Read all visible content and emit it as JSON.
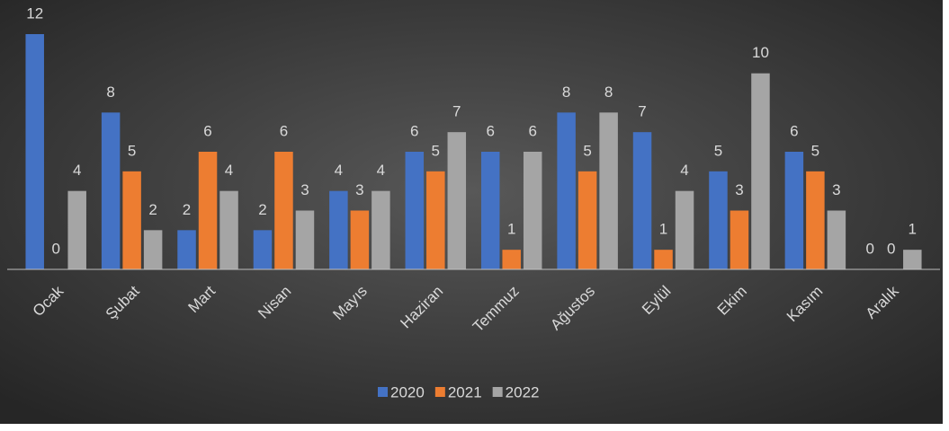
{
  "chart_data": {
    "type": "bar",
    "categories": [
      "Ocak",
      "Şubat",
      "Mart",
      "Nisan",
      "Mayıs",
      "Haziran",
      "Temmuz",
      "Ağustos",
      "Eylül",
      "Ekim",
      "Kasım",
      "Aralık"
    ],
    "series": [
      {
        "name": "2020",
        "color": "#4472c4",
        "values": [
          12,
          8,
          2,
          2,
          4,
          6,
          6,
          8,
          7,
          5,
          6,
          0
        ]
      },
      {
        "name": "2021",
        "color": "#ed7d31",
        "values": [
          0,
          5,
          6,
          6,
          3,
          5,
          1,
          5,
          1,
          3,
          5,
          0
        ]
      },
      {
        "name": "2022",
        "color": "#a5a5a5",
        "values": [
          4,
          2,
          4,
          3,
          4,
          7,
          6,
          8,
          4,
          10,
          3,
          1
        ]
      }
    ],
    "ylim": [
      0,
      12
    ],
    "legend": "bottom"
  }
}
